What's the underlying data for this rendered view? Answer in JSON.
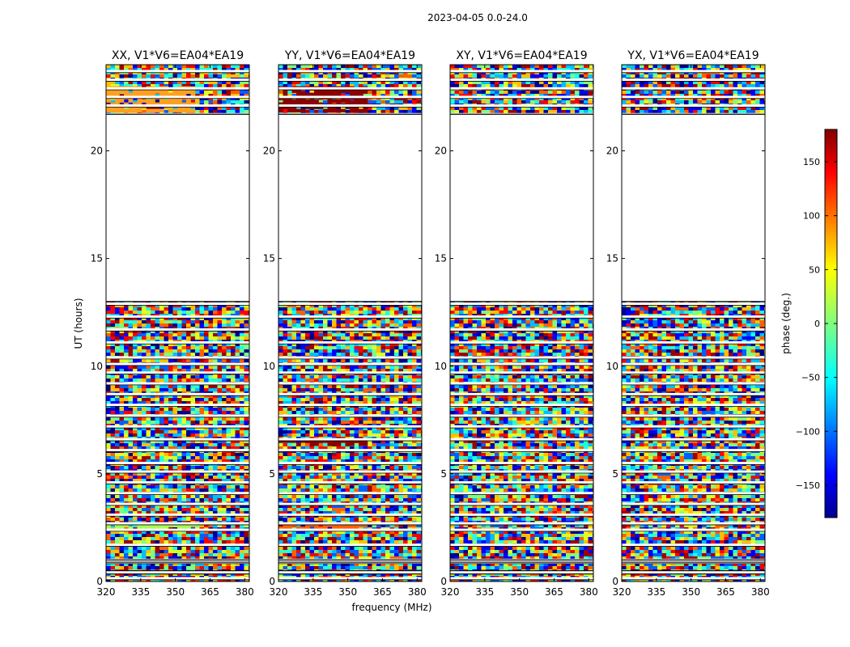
{
  "figure": {
    "suptitle": "2023-04-05 0.0-24.0",
    "xlabel": "frequency (MHz)",
    "ylabel": "UT (hours)"
  },
  "chart_data": {
    "type": "heatmap",
    "x": {
      "label": "frequency (MHz)",
      "range": [
        320,
        382
      ],
      "ticks": [
        320,
        335,
        350,
        365,
        380
      ]
    },
    "y": {
      "label": "UT (hours)",
      "range": [
        0,
        24
      ],
      "ticks": [
        0,
        5,
        10,
        15,
        20
      ]
    },
    "colorbar": {
      "label": "phase (deg.)",
      "range": [
        -180,
        180
      ],
      "ticks": [
        150,
        100,
        50,
        0,
        -50,
        -100,
        -150
      ],
      "colormap": "jet"
    },
    "data_gaps_hours": [
      [
        0.35,
        0.5
      ],
      [
        0.9,
        1.0
      ],
      [
        13.0,
        21.7
      ]
    ],
    "panels": [
      {
        "title": "XX, V1*V6=EA04*EA19",
        "highlight_bands": [
          {
            "y": [
              21.9,
              23.0
            ],
            "color": "#ffa020"
          },
          {
            "y": [
              2.4,
              2.7
            ],
            "color": "#a8ff50"
          }
        ]
      },
      {
        "title": "YY, V1*V6=EA04*EA19",
        "highlight_bands": [
          {
            "y": [
              21.9,
              23.0
            ],
            "color": "#8b0000"
          },
          {
            "y": [
              6.3,
              6.6
            ],
            "color": "#8b0000"
          },
          {
            "y": [
              2.4,
              2.7
            ],
            "color": "#ff6000"
          }
        ]
      },
      {
        "title": "XY, V1*V6=EA04*EA19",
        "highlight_bands": []
      },
      {
        "title": "YX, V1*V6=EA04*EA19",
        "highlight_bands": []
      }
    ]
  }
}
